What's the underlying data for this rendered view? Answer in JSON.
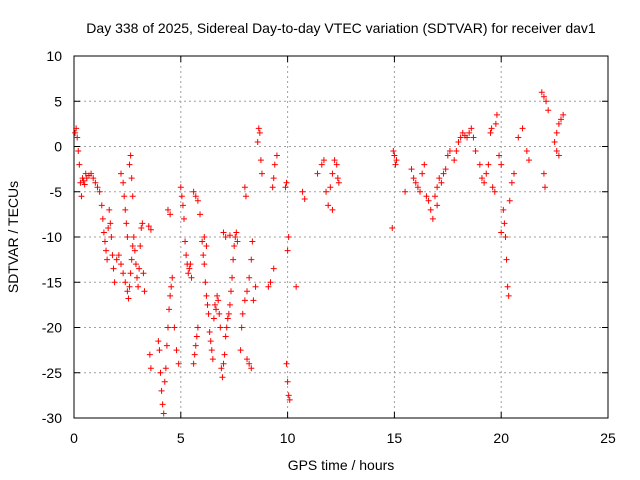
{
  "chart_data": {
    "type": "scatter",
    "title": "Day 338 of 2025, Sidereal Day-to-day VTEC variation (SDTVAR) for receiver dav1",
    "xlabel": "GPS time / hours",
    "ylabel": "SDTVAR / TECUs",
    "xlim": [
      0,
      25
    ],
    "ylim": [
      -30,
      10
    ],
    "xticks": [
      "0",
      "5",
      "10",
      "15",
      "20",
      "25"
    ],
    "yticks": [
      "10",
      "5",
      "0",
      "-5",
      "-10",
      "-15",
      "-20",
      "-25",
      "-30"
    ],
    "xtick_values": [
      0,
      5,
      10,
      15,
      20,
      25
    ],
    "ytick_values": [
      10,
      5,
      0,
      -5,
      -10,
      -15,
      -20,
      -25,
      -30
    ],
    "grid": true,
    "marker": "+",
    "color": "#ff0000",
    "series": [
      {
        "name": "SDTVAR",
        "points": [
          [
            0.05,
            1.5
          ],
          [
            0.1,
            2.0
          ],
          [
            0.15,
            1.0
          ],
          [
            0.2,
            -0.5
          ],
          [
            0.25,
            -2.0
          ],
          [
            0.3,
            -4.0
          ],
          [
            0.35,
            -5.5
          ],
          [
            0.4,
            -3.5
          ],
          [
            0.45,
            -3.8
          ],
          [
            0.5,
            -4.2
          ],
          [
            0.55,
            -3.0
          ],
          [
            0.6,
            -3.5
          ],
          [
            0.7,
            -3.2
          ],
          [
            0.8,
            -3.0
          ],
          [
            0.9,
            -3.5
          ],
          [
            1.0,
            -4.0
          ],
          [
            1.1,
            -4.5
          ],
          [
            1.2,
            -5.0
          ],
          [
            1.3,
            -6.5
          ],
          [
            1.35,
            -8.0
          ],
          [
            1.4,
            -9.5
          ],
          [
            1.45,
            -10.5
          ],
          [
            1.5,
            -11.5
          ],
          [
            1.55,
            -12.5
          ],
          [
            1.6,
            -9.0
          ],
          [
            1.65,
            -7.0
          ],
          [
            1.7,
            -8.5
          ],
          [
            1.75,
            -10.0
          ],
          [
            1.8,
            -12.0
          ],
          [
            1.85,
            -13.5
          ],
          [
            1.9,
            -15.0
          ],
          [
            2.0,
            -12.5
          ],
          [
            2.1,
            -12.0
          ],
          [
            2.2,
            -13.0
          ],
          [
            2.3,
            -14.0
          ],
          [
            2.4,
            -15.0
          ],
          [
            2.5,
            -16.0
          ],
          [
            2.55,
            -16.8
          ],
          [
            2.6,
            -15.5
          ],
          [
            2.65,
            -14.0
          ],
          [
            2.7,
            -12.5
          ],
          [
            2.75,
            -11.0
          ],
          [
            2.8,
            -10.0
          ],
          [
            2.85,
            -11.5
          ],
          [
            2.9,
            -13.0
          ],
          [
            2.95,
            -14.5
          ],
          [
            3.0,
            -15.5
          ],
          [
            3.05,
            -13.5
          ],
          [
            3.1,
            -11.0
          ],
          [
            3.15,
            -9.0
          ],
          [
            3.2,
            -8.5
          ],
          [
            3.25,
            -14.0
          ],
          [
            3.3,
            -16.0
          ],
          [
            2.2,
            -3.0
          ],
          [
            2.3,
            -4.0
          ],
          [
            2.35,
            -5.5
          ],
          [
            2.4,
            -7.0
          ],
          [
            2.45,
            -8.5
          ],
          [
            2.5,
            -10.0
          ],
          [
            2.6,
            -2.0
          ],
          [
            2.65,
            -1.0
          ],
          [
            2.7,
            -3.5
          ],
          [
            2.75,
            -5.5
          ],
          [
            3.5,
            -8.8
          ],
          [
            3.6,
            -9.2
          ],
          [
            3.55,
            -23.0
          ],
          [
            3.6,
            -24.5
          ],
          [
            3.95,
            -21.5
          ],
          [
            4.0,
            -22.5
          ],
          [
            4.05,
            -25.0
          ],
          [
            4.1,
            -27.0
          ],
          [
            4.15,
            -28.5
          ],
          [
            4.2,
            -29.5
          ],
          [
            4.25,
            -26.0
          ],
          [
            4.3,
            -24.5
          ],
          [
            4.35,
            -22.0
          ],
          [
            4.4,
            -20.0
          ],
          [
            4.45,
            -18.0
          ],
          [
            4.5,
            -16.5
          ],
          [
            4.55,
            -15.5
          ],
          [
            4.6,
            -14.5
          ],
          [
            4.4,
            -7.0
          ],
          [
            4.5,
            -7.5
          ],
          [
            4.7,
            -20.0
          ],
          [
            4.8,
            -22.5
          ],
          [
            4.9,
            -24.0
          ],
          [
            5.0,
            -4.5
          ],
          [
            5.05,
            -5.5
          ],
          [
            5.1,
            -6.5
          ],
          [
            5.15,
            -8.0
          ],
          [
            5.2,
            -10.5
          ],
          [
            5.25,
            -12.0
          ],
          [
            5.3,
            -13.0
          ],
          [
            5.35,
            -14.0
          ],
          [
            5.4,
            -13.5
          ],
          [
            5.45,
            -13.0
          ],
          [
            5.5,
            -14.5
          ],
          [
            5.6,
            -24.0
          ],
          [
            5.65,
            -23.0
          ],
          [
            5.7,
            -22.0
          ],
          [
            5.75,
            -21.0
          ],
          [
            5.8,
            -20.0
          ],
          [
            5.6,
            -5.0
          ],
          [
            5.7,
            -5.5
          ],
          [
            5.8,
            -6.0
          ],
          [
            5.9,
            -7.5
          ],
          [
            6.0,
            -10.5
          ],
          [
            6.05,
            -12.0
          ],
          [
            6.1,
            -13.0
          ],
          [
            6.15,
            -15.0
          ],
          [
            6.2,
            -16.5
          ],
          [
            6.25,
            -17.5
          ],
          [
            6.3,
            -18.5
          ],
          [
            6.35,
            -20.5
          ],
          [
            6.4,
            -21.5
          ],
          [
            6.45,
            -22.5
          ],
          [
            6.5,
            -23.5
          ],
          [
            6.55,
            -19.0
          ],
          [
            6.6,
            -17.5
          ],
          [
            6.65,
            -18.0
          ],
          [
            6.7,
            -16.5
          ],
          [
            6.75,
            -17.0
          ],
          [
            6.8,
            -18.5
          ],
          [
            6.85,
            -20.0
          ],
          [
            6.9,
            -24.5
          ],
          [
            6.95,
            -25.5
          ],
          [
            7.0,
            -24.0
          ],
          [
            7.05,
            -23.0
          ],
          [
            7.1,
            -21.0
          ],
          [
            7.15,
            -20.0
          ],
          [
            7.2,
            -19.0
          ],
          [
            7.25,
            -18.5
          ],
          [
            7.3,
            -17.5
          ],
          [
            7.35,
            -16.0
          ],
          [
            7.4,
            -14.5
          ],
          [
            7.45,
            -12.5
          ],
          [
            7.5,
            -11.0
          ],
          [
            7.55,
            -10.0
          ],
          [
            7.6,
            -9.5
          ],
          [
            7.65,
            -10.5
          ],
          [
            6.1,
            -10.0
          ],
          [
            6.2,
            -11.0
          ],
          [
            7.0,
            -9.5
          ],
          [
            7.1,
            -10.0
          ],
          [
            7.3,
            -9.8
          ],
          [
            7.8,
            -22.5
          ],
          [
            7.85,
            -20.0
          ],
          [
            7.9,
            -18.5
          ],
          [
            8.0,
            -17.0
          ],
          [
            8.1,
            -16.0
          ],
          [
            8.2,
            -14.5
          ],
          [
            8.3,
            -12.5
          ],
          [
            8.35,
            -10.5
          ],
          [
            8.1,
            -23.5
          ],
          [
            8.2,
            -24.0
          ],
          [
            8.3,
            -24.5
          ],
          [
            8.4,
            -17.0
          ],
          [
            8.5,
            -15.5
          ],
          [
            8.6,
            0.5
          ],
          [
            8.65,
            2.0
          ],
          [
            8.7,
            1.5
          ],
          [
            8.75,
            -1.5
          ],
          [
            8.8,
            -3.0
          ],
          [
            9.1,
            -15.5
          ],
          [
            9.2,
            -15.0
          ],
          [
            9.3,
            -4.5
          ],
          [
            9.35,
            -3.5
          ],
          [
            9.4,
            -2.0
          ],
          [
            9.5,
            -1.0
          ],
          [
            9.35,
            -13.5
          ],
          [
            8.0,
            -4.5
          ],
          [
            8.05,
            -5.5
          ],
          [
            9.9,
            -4.5
          ],
          [
            9.95,
            -4.0
          ],
          [
            10.0,
            -11.5
          ],
          [
            10.05,
            -10.0
          ],
          [
            9.95,
            -24.0
          ],
          [
            10.0,
            -26.0
          ],
          [
            10.05,
            -27.5
          ],
          [
            10.1,
            -28.0
          ],
          [
            10.4,
            -15.5
          ],
          [
            10.7,
            -5.0
          ],
          [
            10.8,
            -5.8
          ],
          [
            11.4,
            -3.0
          ],
          [
            11.6,
            -2.0
          ],
          [
            11.7,
            -1.5
          ],
          [
            11.8,
            -5.0
          ],
          [
            11.9,
            -6.5
          ],
          [
            12.0,
            -4.5
          ],
          [
            12.1,
            -3.0
          ],
          [
            12.2,
            -1.5
          ],
          [
            12.3,
            -2.0
          ],
          [
            12.35,
            -3.5
          ],
          [
            12.4,
            -4.0
          ],
          [
            12.1,
            -7.0
          ],
          [
            14.9,
            -9.0
          ],
          [
            14.95,
            -0.5
          ],
          [
            15.0,
            -1.0
          ],
          [
            15.05,
            -2.0
          ],
          [
            15.1,
            -1.5
          ],
          [
            15.5,
            -5.0
          ],
          [
            15.8,
            -2.5
          ],
          [
            15.9,
            -3.5
          ],
          [
            16.0,
            -4.0
          ],
          [
            16.1,
            -4.5
          ],
          [
            16.2,
            -5.0
          ],
          [
            16.3,
            -3.0
          ],
          [
            16.4,
            -2.0
          ],
          [
            16.5,
            -5.5
          ],
          [
            16.6,
            -6.0
          ],
          [
            16.7,
            -7.0
          ],
          [
            16.8,
            -8.0
          ],
          [
            16.9,
            -5.5
          ],
          [
            17.0,
            -4.5
          ],
          [
            17.1,
            -3.5
          ],
          [
            17.2,
            -4.0
          ],
          [
            17.3,
            -3.0
          ],
          [
            17.4,
            -2.5
          ],
          [
            17.5,
            -1.0
          ],
          [
            17.0,
            -6.5
          ],
          [
            17.6,
            -0.5
          ],
          [
            17.8,
            -1.5
          ],
          [
            17.9,
            -0.5
          ],
          [
            18.0,
            0.5
          ],
          [
            18.1,
            1.0
          ],
          [
            18.2,
            1.5
          ],
          [
            18.3,
            1.2
          ],
          [
            18.4,
            1.0
          ],
          [
            18.5,
            1.5
          ],
          [
            18.6,
            2.0
          ],
          [
            18.7,
            1.0
          ],
          [
            18.8,
            -0.5
          ],
          [
            19.0,
            -2.0
          ],
          [
            19.1,
            -3.5
          ],
          [
            19.2,
            -4.0
          ],
          [
            19.3,
            -3.0
          ],
          [
            19.4,
            -2.0
          ],
          [
            19.5,
            1.5
          ],
          [
            19.55,
            2.0
          ],
          [
            19.6,
            -4.5
          ],
          [
            19.7,
            -5.0
          ],
          [
            19.75,
            2.5
          ],
          [
            19.8,
            3.5
          ],
          [
            19.9,
            -1.0
          ],
          [
            20.0,
            -2.0
          ],
          [
            20.1,
            -7.0
          ],
          [
            20.15,
            -8.5
          ],
          [
            20.2,
            -10.0
          ],
          [
            20.25,
            -12.5
          ],
          [
            20.3,
            -15.5
          ],
          [
            20.35,
            -16.5
          ],
          [
            20.0,
            -9.5
          ],
          [
            20.4,
            -6.0
          ],
          [
            20.5,
            -4.0
          ],
          [
            20.6,
            -3.0
          ],
          [
            20.8,
            1.0
          ],
          [
            21.0,
            2.0
          ],
          [
            21.2,
            -0.5
          ],
          [
            21.3,
            -1.5
          ],
          [
            21.9,
            6.0
          ],
          [
            22.0,
            5.5
          ],
          [
            22.1,
            5.0
          ],
          [
            22.2,
            4.0
          ],
          [
            22.0,
            -3.0
          ],
          [
            22.05,
            -4.5
          ],
          [
            22.5,
            0.5
          ],
          [
            22.6,
            1.5
          ],
          [
            22.7,
            2.5
          ],
          [
            22.8,
            3.0
          ],
          [
            22.9,
            3.5
          ],
          [
            22.6,
            -0.5
          ],
          [
            22.7,
            -1.0
          ]
        ]
      }
    ]
  }
}
